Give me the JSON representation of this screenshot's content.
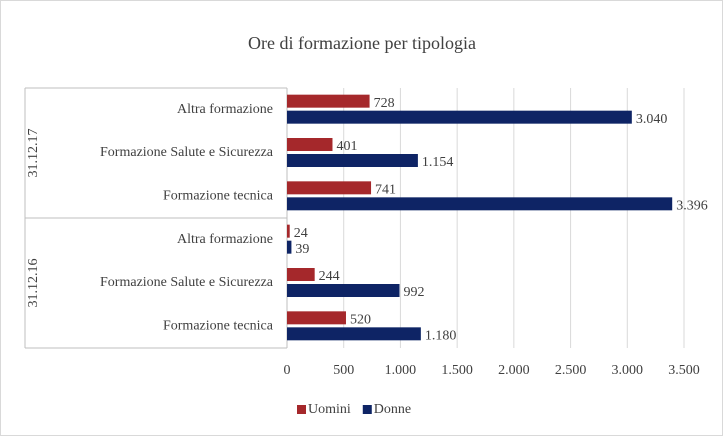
{
  "chart_data": {
    "type": "bar",
    "orientation": "horizontal",
    "title": "Ore di formazione per tipologia",
    "groups": [
      {
        "name": "31.12.17",
        "categories": [
          "Altra formazione",
          "Formazione Salute e Sicurezza",
          "Formazione tecnica"
        ]
      },
      {
        "name": "31.12.16",
        "categories": [
          "Altra formazione",
          "Formazione Salute e Sicurezza",
          "Formazione tecnica"
        ]
      }
    ],
    "series": [
      {
        "name": "Uomini",
        "color": "#a5282b",
        "values": [
          728,
          401,
          741,
          24,
          244,
          520
        ]
      },
      {
        "name": "Donne",
        "color": "#0e2465",
        "values": [
          3040,
          1154,
          3396,
          39,
          992,
          1180
        ],
        "value_labels": [
          "3.040",
          "1.154",
          "3.396",
          "39",
          "992",
          "1.180"
        ]
      }
    ],
    "xlim": [
      0,
      3500
    ],
    "xticks": [
      0,
      500,
      {
        "value": 1000,
        "label": "1.000"
      },
      {
        "value": 1500,
        "label": "1.500"
      },
      {
        "value": 2000,
        "label": "2.000"
      },
      {
        "value": 2500,
        "label": "2.500"
      },
      {
        "value": 3000,
        "label": "3.000"
      },
      {
        "value": 3500,
        "label": "3.500"
      }
    ],
    "grid": true,
    "legend": "bottom"
  }
}
